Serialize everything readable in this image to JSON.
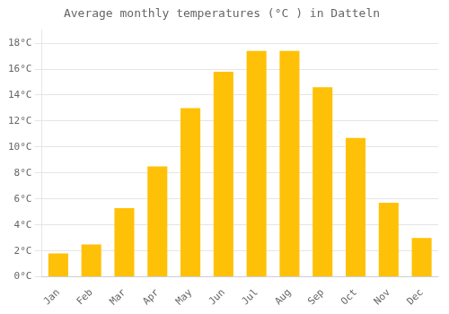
{
  "chart_data": {
    "type": "bar",
    "title": "Average monthly temperatures (°C ) in Datteln",
    "categories": [
      "Jan",
      "Feb",
      "Mar",
      "Apr",
      "May",
      "Jun",
      "Jul",
      "Aug",
      "Sep",
      "Oct",
      "Nov",
      "Dec"
    ],
    "values": [
      1.8,
      2.5,
      5.3,
      8.5,
      13.0,
      15.8,
      17.4,
      17.4,
      14.6,
      10.7,
      5.7,
      3.0
    ],
    "color": "#FFC107",
    "ylim": [
      0,
      19
    ],
    "yticks": [
      {
        "value": 0,
        "label": "0°C"
      },
      {
        "value": 2,
        "label": "2°C"
      },
      {
        "value": 4,
        "label": "4°C"
      },
      {
        "value": 6,
        "label": "6°C"
      },
      {
        "value": 8,
        "label": "8°C"
      },
      {
        "value": 10,
        "label": "10°C"
      },
      {
        "value": 12,
        "label": "12°C"
      },
      {
        "value": 14,
        "label": "14°C"
      },
      {
        "value": 16,
        "label": "16°C"
      },
      {
        "value": 18,
        "label": "18°C"
      }
    ],
    "grid": true
  }
}
